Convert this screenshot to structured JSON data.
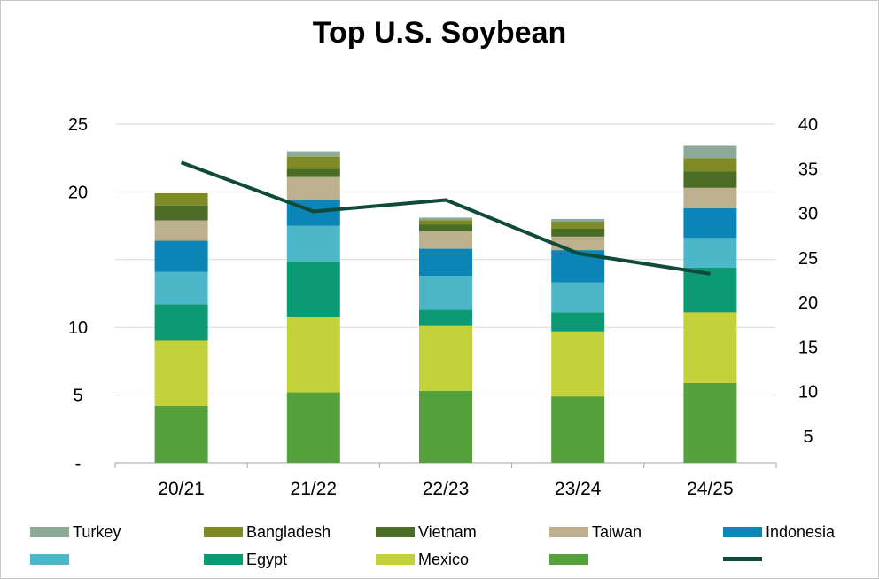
{
  "chart_data": {
    "type": "bar",
    "stacked": true,
    "title": "Top U.S. Soybean",
    "categories": [
      "20/21",
      "21/22",
      "22/23",
      "23/24",
      "24/25"
    ],
    "y_left": {
      "ticks": [
        "-",
        "5",
        "10",
        "20",
        "25"
      ],
      "tick_values": [
        0,
        5,
        10,
        15,
        20,
        25
      ],
      "ylim": [
        0,
        25
      ],
      "tick_positions": [
        0,
        5,
        10,
        20,
        25
      ]
    },
    "y_right": {
      "ticks": [
        "5",
        "10",
        "15",
        "20",
        "25",
        "30",
        "35",
        "40"
      ],
      "ylim": [
        2,
        40
      ]
    },
    "grid": true,
    "legend_position": "bottom",
    "series": [
      {
        "name": "",
        "color": "#55a13c",
        "values": [
          4.2,
          5.2,
          5.3,
          4.9,
          5.9
        ]
      },
      {
        "name": "Mexico",
        "color": "#c3d13b",
        "values": [
          4.8,
          5.6,
          4.8,
          4.8,
          5.2
        ]
      },
      {
        "name": "Egypt",
        "color": "#0b9a74",
        "values": [
          2.7,
          4.0,
          1.2,
          1.4,
          3.3
        ]
      },
      {
        "name": "",
        "color": "#4bb7c9",
        "values": [
          2.4,
          2.7,
          2.5,
          2.2,
          2.2
        ]
      },
      {
        "name": "Indonesia",
        "color": "#0b84b8",
        "values": [
          2.3,
          1.9,
          2.0,
          2.4,
          2.2
        ]
      },
      {
        "name": "Taiwan",
        "color": "#bdb08e",
        "values": [
          1.5,
          1.7,
          1.3,
          1.0,
          1.5
        ]
      },
      {
        "name": "Vietnam",
        "color": "#4a6c25",
        "values": [
          1.1,
          0.6,
          0.5,
          0.6,
          1.2
        ]
      },
      {
        "name": "Bangladesh",
        "color": "#7f8a26",
        "values": [
          0.9,
          0.9,
          0.3,
          0.5,
          1.0
        ]
      },
      {
        "name": "Turkey",
        "color": "#8caa97",
        "values": [
          0.0,
          0.4,
          0.2,
          0.2,
          0.9
        ]
      }
    ],
    "line_series": {
      "name": "",
      "color": "#0f4a3a",
      "axis": "right",
      "values": [
        35.7,
        30.2,
        31.5,
        25.5,
        23.2
      ]
    },
    "legend": {
      "row1": [
        {
          "label": "Turkey",
          "color": "#8caa97"
        },
        {
          "label": "Bangladesh",
          "color": "#7f8a26"
        },
        {
          "label": "Vietnam",
          "color": "#4a6c25"
        },
        {
          "label": "Taiwan",
          "color": "#bdb08e"
        },
        {
          "label": "Indonesia",
          "color": "#0b84b8"
        }
      ],
      "row2": [
        {
          "label": "",
          "color": "#4bb7c9"
        },
        {
          "label": "Egypt",
          "color": "#0b9a74"
        },
        {
          "label": "Mexico",
          "color": "#c3d13b"
        },
        {
          "label": "",
          "color": "#55a13c"
        },
        {
          "label": "",
          "color": "#0f4a3a",
          "line": true
        }
      ]
    }
  }
}
